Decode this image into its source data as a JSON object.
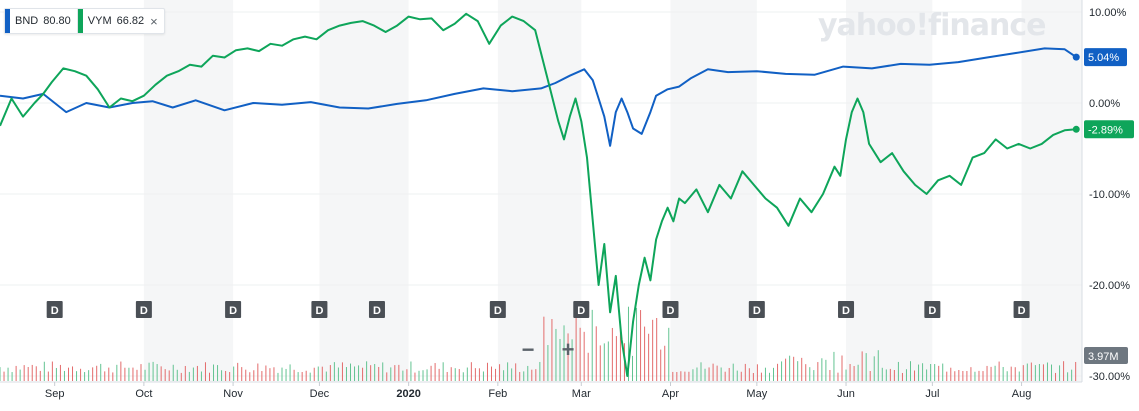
{
  "legend": [
    {
      "symbol": "BND",
      "price": "80.80",
      "color": "#1160c4"
    },
    {
      "symbol": "VYM",
      "price": "66.82",
      "color": "#0ea55a",
      "close_label": "×"
    }
  ],
  "watermark": "yahoo!finance",
  "zoom": {
    "minus": "−",
    "plus": "+"
  },
  "chart_data": {
    "type": "line",
    "title": "",
    "ylim": [
      -30,
      10
    ],
    "y_ticks": [
      "10.00%",
      "0.00%",
      "-10.00%",
      "-20.00%",
      "-30.00%"
    ],
    "y_tick_values": [
      10,
      0,
      -10,
      -20,
      -30
    ],
    "x_ticks": [
      "Sep",
      "Oct",
      "Nov",
      "Dec",
      "2020",
      "Feb",
      "Mar",
      "Apr",
      "May",
      "Jun",
      "Jul",
      "Aug"
    ],
    "x_tick_positions": [
      1,
      32,
      63,
      93,
      124,
      155,
      184,
      215,
      245,
      276,
      306,
      337
    ],
    "x_range": [
      -18,
      358
    ],
    "dividend_marker": "D",
    "dividend_days": [
      1,
      32,
      63,
      93,
      113,
      155,
      184,
      215,
      245,
      276,
      306,
      337
    ],
    "volume_label": "3.97M",
    "series": [
      {
        "name": "BND",
        "color": "#1160c4",
        "last_label": "5.04%",
        "x": [
          -18,
          -10,
          -3,
          5,
          12,
          20,
          28,
          35,
          42,
          50,
          60,
          70,
          80,
          90,
          100,
          110,
          120,
          130,
          140,
          150,
          160,
          170,
          175,
          180,
          185,
          188,
          190,
          192,
          194,
          196,
          198,
          200,
          202,
          205,
          208,
          210,
          214,
          218,
          222,
          228,
          235,
          245,
          255,
          265,
          275,
          285,
          295,
          305,
          315,
          325,
          335,
          345,
          352,
          356
        ],
        "y": [
          0.8,
          0.5,
          1.0,
          -1.0,
          0.0,
          -0.5,
          0.0,
          0.2,
          -0.5,
          0.3,
          -0.8,
          0.0,
          -0.2,
          0.1,
          -0.5,
          -0.6,
          -0.1,
          0.3,
          1.0,
          1.6,
          1.3,
          1.6,
          2.2,
          3.0,
          3.7,
          2.5,
          0.5,
          -1.5,
          -4.7,
          -1.0,
          0.5,
          -1.0,
          -2.8,
          -3.4,
          -1.0,
          0.8,
          1.5,
          1.8,
          2.7,
          3.7,
          3.4,
          3.5,
          3.2,
          3.1,
          4.0,
          3.8,
          4.3,
          4.2,
          4.5,
          5.0,
          5.5,
          6.0,
          5.9,
          5.04
        ]
      },
      {
        "name": "VYM",
        "color": "#0ea55a",
        "last_label": "-2.89%",
        "x": [
          -18,
          -14,
          -10,
          -6,
          -3,
          0,
          4,
          8,
          12,
          16,
          20,
          24,
          28,
          32,
          36,
          40,
          44,
          48,
          52,
          56,
          60,
          64,
          68,
          72,
          76,
          80,
          84,
          88,
          92,
          96,
          100,
          104,
          108,
          112,
          116,
          120,
          124,
          128,
          132,
          136,
          140,
          144,
          148,
          152,
          156,
          160,
          164,
          168,
          172,
          176,
          178,
          180,
          182,
          184,
          186,
          188,
          190,
          192,
          194,
          196,
          198,
          200,
          202,
          204,
          206,
          208,
          210,
          212,
          214,
          216,
          218,
          220,
          224,
          228,
          232,
          236,
          240,
          244,
          248,
          252,
          256,
          260,
          264,
          268,
          272,
          274,
          276,
          278,
          280,
          282,
          284,
          288,
          292,
          296,
          300,
          304,
          308,
          312,
          316,
          320,
          324,
          328,
          332,
          336,
          340,
          344,
          348,
          352,
          356
        ],
        "y": [
          -2.5,
          0.5,
          -1.5,
          0.0,
          1.0,
          2.3,
          3.8,
          3.5,
          3.0,
          1.5,
          -0.5,
          0.5,
          0.2,
          0.8,
          2.0,
          3.0,
          3.5,
          4.2,
          4.0,
          5.2,
          5.0,
          5.8,
          6.0,
          5.7,
          6.5,
          6.3,
          7.0,
          7.3,
          7.0,
          8.0,
          8.5,
          8.8,
          9.0,
          8.5,
          7.8,
          8.5,
          9.5,
          9.2,
          9.3,
          8.0,
          8.7,
          9.8,
          9.0,
          6.5,
          8.5,
          9.5,
          9.0,
          8.0,
          3.0,
          -2.0,
          -4.0,
          -1.5,
          0.5,
          -2.0,
          -6.0,
          -13.0,
          -20.0,
          -15.5,
          -23.0,
          -19.0,
          -26.0,
          -30.0,
          -24.0,
          -20.0,
          -17.0,
          -19.5,
          -15.0,
          -13.0,
          -11.5,
          -13.0,
          -10.5,
          -11.0,
          -9.5,
          -12.0,
          -9.0,
          -10.5,
          -7.5,
          -9.0,
          -10.5,
          -11.5,
          -13.5,
          -10.5,
          -12.0,
          -10.0,
          -7.0,
          -8.0,
          -4.0,
          -1.0,
          0.5,
          -1.0,
          -4.5,
          -6.5,
          -5.5,
          -7.5,
          -9.0,
          -10.0,
          -8.5,
          -8.0,
          -9.0,
          -6.0,
          -5.5,
          -4.0,
          -5.0,
          -4.5,
          -5.0,
          -4.5,
          -3.5,
          -3.0,
          -2.89
        ]
      }
    ]
  }
}
